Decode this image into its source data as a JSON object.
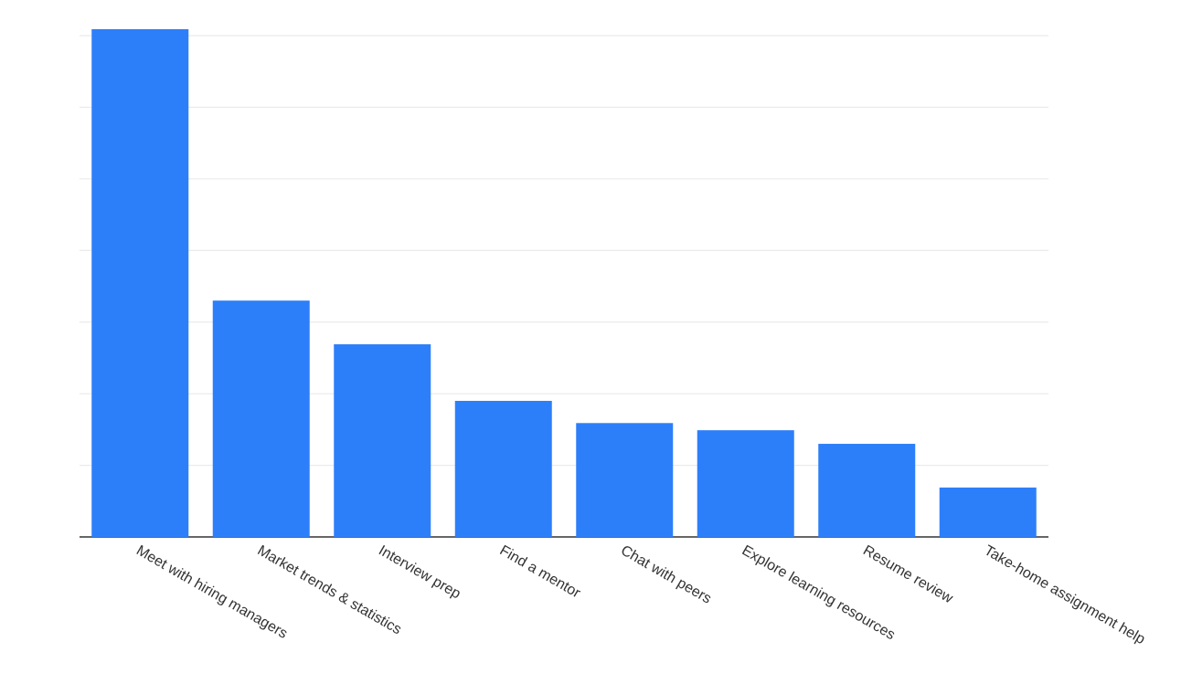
{
  "chart_data": {
    "type": "bar",
    "categories": [
      "Meet with hiring managers",
      "Market trends & statistics",
      "Interview prep",
      "Find a mentor",
      "Chat with peers",
      "Explore learning resources",
      "Resume review",
      "Take-home assignment help"
    ],
    "values": [
      7.09,
      3.3,
      2.69,
      1.9,
      1.59,
      1.49,
      1.3,
      0.69
    ],
    "color": "#2d7ff9",
    "ylim": [
      0,
      7.2
    ],
    "yticks": [
      0,
      1,
      2,
      3,
      4,
      5,
      6,
      7
    ],
    "grid": true
  }
}
